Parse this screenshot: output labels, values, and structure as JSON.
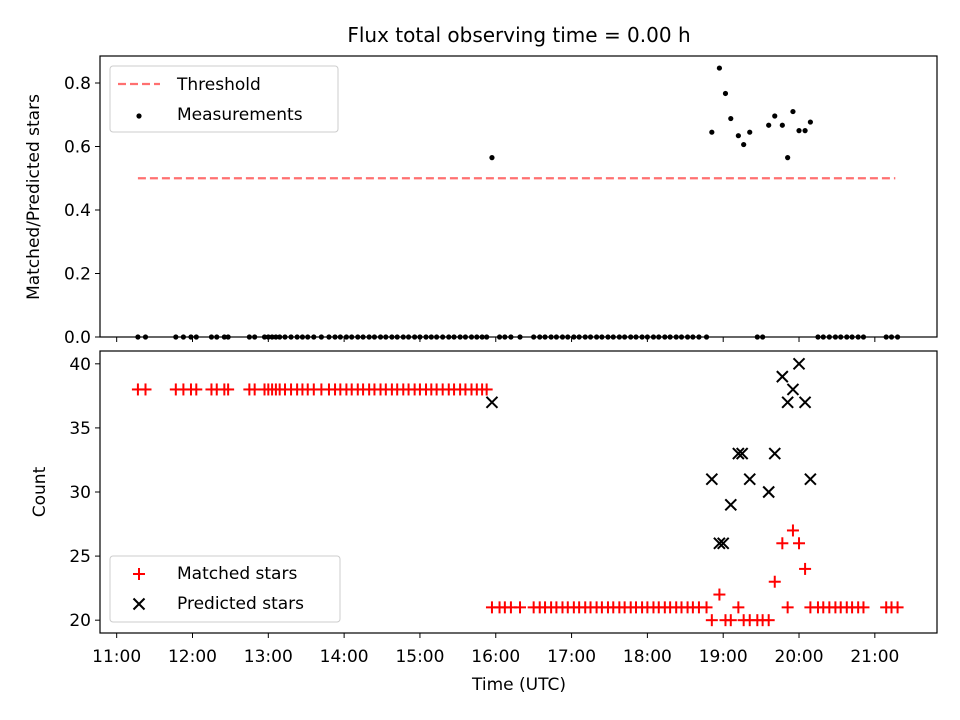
{
  "title": "Flux total observing time = 0.00 h",
  "top": {
    "ylabel": "Matched/Predicted stars",
    "ylim": [
      0,
      0.885
    ],
    "yticks": [
      "0.0",
      "0.2",
      "0.4",
      "0.6",
      "0.8"
    ],
    "legend": {
      "threshold": "Threshold",
      "measurements": "Measurements"
    }
  },
  "bottom": {
    "ylabel": "Count",
    "ylim": [
      19,
      41
    ],
    "yticks": [
      "20",
      "25",
      "30",
      "35",
      "40"
    ],
    "legend": {
      "matched": "Matched stars",
      "predicted": "Predicted stars"
    }
  },
  "xlabel": "Time (UTC)",
  "xticks": [
    "11:00",
    "12:00",
    "13:00",
    "14:00",
    "15:00",
    "16:00",
    "17:00",
    "18:00",
    "19:00",
    "20:00",
    "21:00"
  ],
  "colors": {
    "threshold": "#ff7070",
    "measurements": "#000000",
    "matched": "#ff0000",
    "predicted": "#000000"
  },
  "chart_data": [
    {
      "type": "scatter",
      "x_unit": "hours UTC",
      "xlim": [
        10.78,
        21.82
      ],
      "threshold": {
        "value": 0.5,
        "x_start": 11.28,
        "x_end": 21.27
      },
      "series": [
        {
          "name": "Measurements",
          "x": [
            11.28,
            11.38,
            11.78,
            11.88,
            11.98,
            12.05,
            12.25,
            12.32,
            12.42,
            12.47,
            12.75,
            12.82,
            12.95,
            13.0,
            13.05,
            13.1,
            13.15,
            13.22,
            13.3,
            13.38,
            13.45,
            13.52,
            13.6,
            13.7,
            13.8,
            13.88,
            13.95,
            14.03,
            14.1,
            14.18,
            14.25,
            14.33,
            14.4,
            14.48,
            14.55,
            14.63,
            14.7,
            14.78,
            14.85,
            14.93,
            15.0,
            15.08,
            15.15,
            15.22,
            15.3,
            15.38,
            15.45,
            15.53,
            15.6,
            15.68,
            15.75,
            15.82,
            15.88,
            15.95,
            16.05,
            16.12,
            16.2,
            16.32,
            16.5,
            16.58,
            16.65,
            16.73,
            16.8,
            16.88,
            16.95,
            17.03,
            17.1,
            17.18,
            17.25,
            17.33,
            17.4,
            17.48,
            17.55,
            17.63,
            17.7,
            17.78,
            17.85,
            17.93,
            18.0,
            18.08,
            18.15,
            18.23,
            18.3,
            18.38,
            18.45,
            18.53,
            18.6,
            18.68,
            18.78,
            18.85,
            18.95,
            19.03,
            19.1,
            19.2,
            19.27,
            19.35,
            19.45,
            19.52,
            19.6,
            19.68,
            19.78,
            19.85,
            19.92,
            20.0,
            20.08,
            20.15,
            20.25,
            20.32,
            20.4,
            20.48,
            20.55,
            20.63,
            20.7,
            20.78,
            20.85,
            21.15,
            21.22,
            21.3
          ],
          "y": [
            0,
            0,
            0,
            0,
            0,
            0,
            0,
            0,
            0,
            0,
            0,
            0,
            0,
            0,
            0,
            0,
            0,
            0,
            0,
            0,
            0,
            0,
            0,
            0,
            0,
            0,
            0,
            0,
            0,
            0,
            0,
            0,
            0,
            0,
            0,
            0,
            0,
            0,
            0,
            0,
            0,
            0,
            0,
            0,
            0,
            0,
            0,
            0,
            0,
            0,
            0,
            0,
            0,
            0.565,
            0,
            0,
            0,
            0,
            0,
            0,
            0,
            0,
            0,
            0,
            0,
            0,
            0,
            0,
            0,
            0,
            0,
            0,
            0,
            0,
            0,
            0,
            0,
            0,
            0,
            0,
            0,
            0,
            0,
            0,
            0,
            0,
            0,
            0,
            0,
            0.645,
            0.847,
            0.767,
            0.688,
            0.634,
            0.606,
            0.645,
            0,
            0,
            0.667,
            0.696,
            0.667,
            0.565,
            0.71,
            0.65,
            0.65,
            0.677,
            0,
            0,
            0,
            0,
            0,
            0,
            0,
            0,
            0,
            0,
            0,
            0
          ]
        }
      ]
    },
    {
      "type": "scatter",
      "x_unit": "hours UTC",
      "xlim": [
        10.78,
        21.82
      ],
      "ylim": [
        19,
        41
      ],
      "series": [
        {
          "name": "Matched stars",
          "x": [
            11.28,
            11.38,
            11.78,
            11.88,
            11.98,
            12.05,
            12.25,
            12.32,
            12.42,
            12.47,
            12.75,
            12.82,
            12.95,
            13.0,
            13.05,
            13.1,
            13.15,
            13.22,
            13.3,
            13.38,
            13.45,
            13.52,
            13.6,
            13.7,
            13.8,
            13.88,
            13.95,
            14.03,
            14.1,
            14.18,
            14.25,
            14.33,
            14.4,
            14.48,
            14.55,
            14.63,
            14.7,
            14.78,
            14.85,
            14.93,
            15.0,
            15.08,
            15.15,
            15.22,
            15.3,
            15.38,
            15.45,
            15.53,
            15.6,
            15.68,
            15.75,
            15.82,
            15.88,
            15.95,
            16.05,
            16.12,
            16.2,
            16.32,
            16.5,
            16.58,
            16.65,
            16.73,
            16.8,
            16.88,
            16.95,
            17.03,
            17.1,
            17.18,
            17.25,
            17.33,
            17.4,
            17.48,
            17.55,
            17.63,
            17.7,
            17.78,
            17.85,
            17.93,
            18.0,
            18.08,
            18.15,
            18.23,
            18.3,
            18.38,
            18.45,
            18.53,
            18.6,
            18.68,
            18.78,
            18.85,
            18.95,
            19.03,
            19.1,
            19.2,
            19.27,
            19.35,
            19.45,
            19.52,
            19.6,
            19.68,
            19.78,
            19.85,
            19.92,
            20.0,
            20.08,
            20.15,
            20.25,
            20.32,
            20.4,
            20.48,
            20.55,
            20.63,
            20.7,
            20.78,
            20.85,
            21.15,
            21.22,
            21.3
          ],
          "y": [
            38,
            38,
            38,
            38,
            38,
            38,
            38,
            38,
            38,
            38,
            38,
            38,
            38,
            38,
            38,
            38,
            38,
            38,
            38,
            38,
            38,
            38,
            38,
            38,
            38,
            38,
            38,
            38,
            38,
            38,
            38,
            38,
            38,
            38,
            38,
            38,
            38,
            38,
            38,
            38,
            38,
            38,
            38,
            38,
            38,
            38,
            38,
            38,
            38,
            38,
            38,
            38,
            38,
            21,
            21,
            21,
            21,
            21,
            21,
            21,
            21,
            21,
            21,
            21,
            21,
            21,
            21,
            21,
            21,
            21,
            21,
            21,
            21,
            21,
            21,
            21,
            21,
            21,
            21,
            21,
            21,
            21,
            21,
            21,
            21,
            21,
            21,
            21,
            21,
            20,
            22,
            20,
            20,
            21,
            20,
            20,
            20,
            20,
            20,
            23,
            26,
            21,
            27,
            26,
            24,
            21,
            21,
            21,
            21,
            21,
            21,
            21,
            21,
            21,
            21,
            21,
            21,
            21
          ]
        },
        {
          "name": "Predicted stars",
          "x": [
            15.95,
            18.85,
            18.95,
            19.0,
            19.1,
            19.2,
            19.25,
            19.35,
            19.6,
            19.68,
            19.78,
            19.85,
            19.92,
            20.0,
            20.08,
            20.15
          ],
          "y": [
            37,
            31,
            26,
            26,
            29,
            33,
            33,
            31,
            30,
            33,
            39,
            37,
            38,
            40,
            37,
            31
          ]
        }
      ]
    }
  ]
}
